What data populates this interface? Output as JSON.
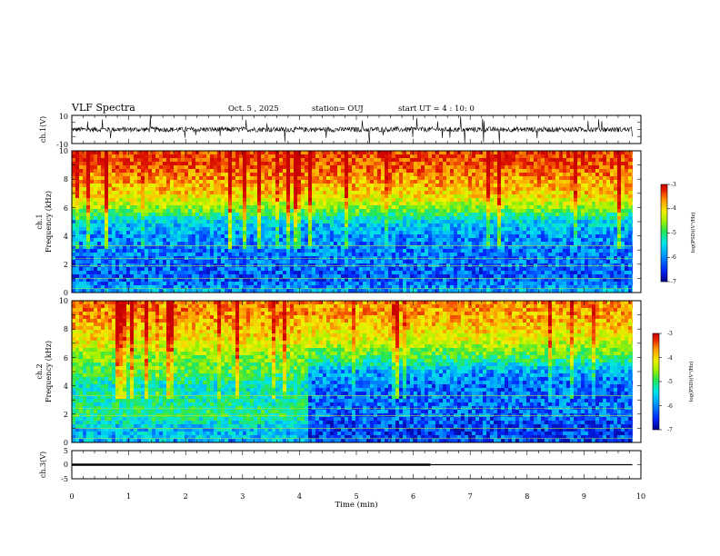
{
  "header": {
    "title": "VLF Spectra",
    "date": "Oct. 5 , 2025",
    "station": "station= OUJ",
    "start": "start UT = 4 : 10: 0"
  },
  "chart_data": [
    {
      "type": "line",
      "name": "ch1-waveform",
      "ylabel": "ch.1(V)",
      "ylim": [
        -10,
        10
      ],
      "yticks": [
        "10",
        "-10"
      ],
      "xlim": [
        0,
        10
      ],
      "grid": false,
      "baseline": 0,
      "noise_band": [
        -2,
        2
      ]
    },
    {
      "type": "heatmap",
      "name": "ch1-spectrogram",
      "ylabel": "ch.1\nFrequency (kHz)",
      "ylim": [
        0,
        10
      ],
      "yticks": [
        "0",
        "2",
        "4",
        "6",
        "8",
        "10"
      ],
      "xlim": [
        0,
        10
      ],
      "data_end_min": 9.85,
      "colorbar": {
        "label": "log(PSD)(V²/Hz)",
        "range": [
          -7,
          -3
        ],
        "ticks": [
          "-3",
          "-4",
          "-5",
          "-6",
          "-7"
        ]
      },
      "profile_khz_logpsd": [
        [
          0,
          -6.0
        ],
        [
          1,
          -6.4
        ],
        [
          2,
          -6.3
        ],
        [
          3,
          -6.2
        ],
        [
          4,
          -6.1
        ],
        [
          5,
          -5.8
        ],
        [
          6,
          -4.8
        ],
        [
          7,
          -4.2
        ],
        [
          8,
          -3.9
        ],
        [
          9,
          -3.6
        ],
        [
          10,
          -3.5
        ]
      ]
    },
    {
      "type": "heatmap",
      "name": "ch2-spectrogram",
      "ylabel": "ch.2\nFrequency (kHz)",
      "ylim": [
        0,
        10
      ],
      "yticks": [
        "0",
        "2",
        "4",
        "6",
        "8",
        "10"
      ],
      "xlim": [
        0,
        10
      ],
      "data_end_min": 9.85,
      "colorbar": {
        "label": "log(PSD)(V²/Hz)",
        "range": [
          -7,
          -3
        ],
        "ticks": [
          "-3",
          "-4",
          "-5",
          "-6",
          "-7"
        ]
      },
      "profile_khz_logpsd_before_4_1min": [
        [
          0,
          -6.0
        ],
        [
          1,
          -5.9
        ],
        [
          2,
          -5.3
        ],
        [
          3,
          -5.5
        ],
        [
          4,
          -5.6
        ],
        [
          5,
          -5.1
        ],
        [
          6,
          -4.9
        ],
        [
          7,
          -4.4
        ],
        [
          8,
          -4.1
        ],
        [
          9,
          -3.9
        ],
        [
          10,
          -3.8
        ]
      ],
      "profile_khz_logpsd_after_4_1min": [
        [
          0,
          -6.4
        ],
        [
          1,
          -6.5
        ],
        [
          2,
          -6.3
        ],
        [
          3,
          -6.3
        ],
        [
          4,
          -6.3
        ],
        [
          5,
          -6.0
        ],
        [
          6,
          -5.2
        ],
        [
          7,
          -4.6
        ],
        [
          8,
          -4.2
        ],
        [
          9,
          -4.0
        ],
        [
          10,
          -3.9
        ]
      ]
    },
    {
      "type": "line",
      "name": "ch3-waveform",
      "ylabel": "ch.3(V)",
      "ylim": [
        -5,
        5
      ],
      "yticks": [
        "5",
        "0",
        "-5"
      ],
      "xlim": [
        0,
        10
      ],
      "xlabel": "Time (min)",
      "xticks": [
        "0",
        "1",
        "2",
        "3",
        "4",
        "5",
        "6",
        "7",
        "8",
        "9",
        "10"
      ],
      "series": [
        {
          "x": [
            0,
            6.3
          ],
          "y": [
            0,
            0
          ],
          "style": "thick"
        },
        {
          "x": [
            6.3,
            9.85
          ],
          "y": [
            0,
            0
          ],
          "style": "thin"
        }
      ]
    }
  ],
  "colors": {
    "axis": "#000000",
    "colormap": [
      "#00008c",
      "#0028ff",
      "#00a0ff",
      "#00e6e6",
      "#28e650",
      "#a0f000",
      "#f0f000",
      "#ff9600",
      "#e61e00",
      "#c80000"
    ]
  }
}
